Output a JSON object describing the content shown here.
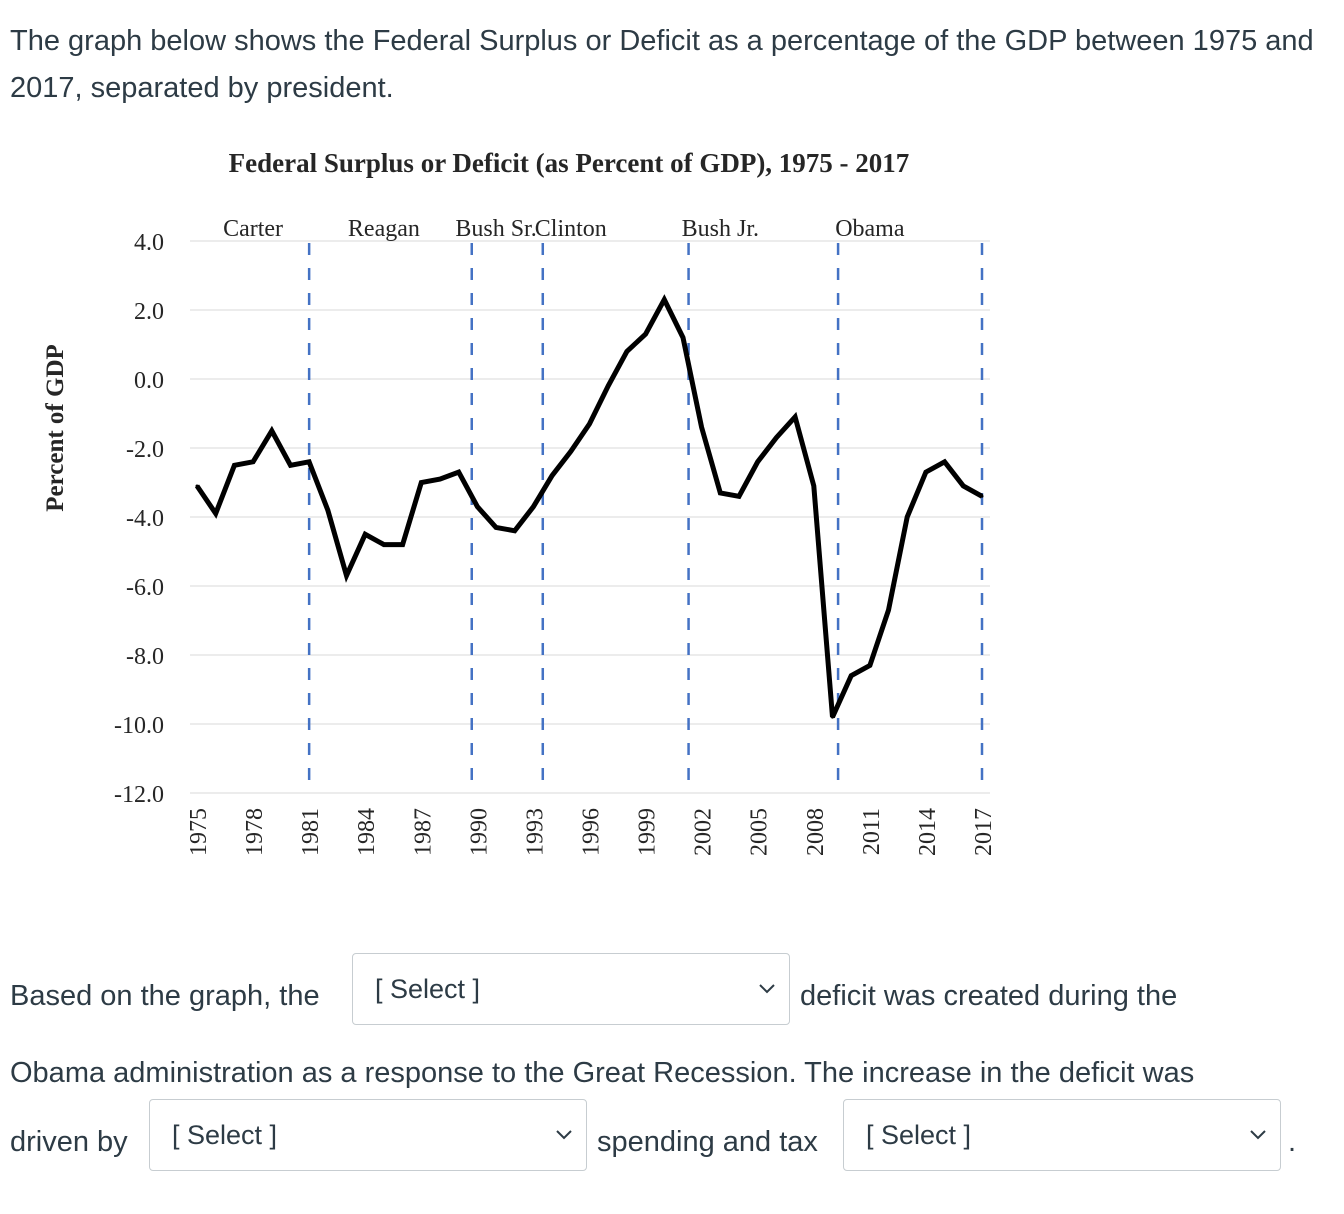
{
  "intro": {
    "text": "The graph below shows the Federal Surplus or Deficit as a percentage of the GDP between 1975 and 2017, separated by president."
  },
  "chart_data": {
    "type": "line",
    "title": "Federal Surplus or Deficit (as Percent of GDP), 1975 - 2017",
    "ylabel": "Percent of GDP",
    "xlabel": "",
    "ylim": [
      -12,
      4
    ],
    "yticks": [
      "4.0",
      "2.0",
      "0.0",
      "-2.0",
      "-4.0",
      "-6.0",
      "-8.0",
      "-10.0",
      "-12.0"
    ],
    "ytick_values": [
      4,
      2,
      0,
      -2,
      -4,
      -6,
      -8,
      -10,
      -12
    ],
    "xlim": [
      1975,
      2017
    ],
    "xticks": [
      "1975",
      "1978",
      "1981",
      "1984",
      "1987",
      "1990",
      "1993",
      "1996",
      "1999",
      "2002",
      "2005",
      "2008",
      "2011",
      "2014",
      "2017"
    ],
    "grid": true,
    "series": [
      {
        "x": [
          1975,
          1976,
          1977,
          1978,
          1979,
          1980,
          1981,
          1982,
          1983,
          1984,
          1985,
          1986,
          1987,
          1988,
          1989,
          1990,
          1991,
          1992,
          1993,
          1994,
          1995,
          1996,
          1997,
          1998,
          1999,
          2000,
          2001,
          2002,
          2003,
          2004,
          2005,
          2006,
          2007,
          2008,
          2009,
          2010,
          2011,
          2012,
          2013,
          2014,
          2015,
          2016,
          2017
        ],
        "values": [
          -3.1,
          -3.9,
          -2.5,
          -2.4,
          -1.5,
          -2.5,
          -2.4,
          -3.8,
          -5.7,
          -4.5,
          -4.8,
          -4.8,
          -3.0,
          -2.9,
          -2.7,
          -3.7,
          -4.3,
          -4.4,
          -3.7,
          -2.8,
          -2.1,
          -1.3,
          -0.2,
          0.8,
          1.3,
          2.3,
          1.2,
          -1.4,
          -3.3,
          -3.4,
          -2.4,
          -1.7,
          -1.1,
          -3.1,
          -9.8,
          -8.6,
          -8.3,
          -6.7,
          -4.0,
          -2.7,
          -2.4,
          -3.1,
          -3.4
        ]
      }
    ],
    "president_labels": [
      "Carter",
      "Reagan",
      "Bush Sr.",
      "Clinton",
      "Bush Jr.",
      "Obama"
    ],
    "president_label_years": [
      1978,
      1985,
      1991,
      1995,
      2003,
      2011
    ],
    "term_divider_years": [
      1981,
      1989.7,
      1993.5,
      2001.3,
      2009.3,
      2017
    ],
    "line_color": "#000000",
    "divider_color": "#4472c4",
    "grid_color": "#e6e6e6"
  },
  "question": {
    "part1": "Based on the graph, the",
    "part2": "deficit was created during the",
    "part3": "Obama administration as a response to the Great Recession. The increase in the deficit was",
    "part4": "driven by",
    "part5": "spending and tax",
    "part6": ".",
    "select1": "[ Select ]",
    "select2": "[ Select ]",
    "select3": "[ Select ]"
  }
}
